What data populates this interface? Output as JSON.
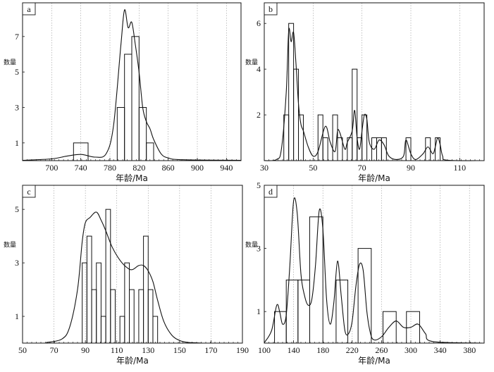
{
  "chart_data": [
    {
      "panel": "a",
      "type": "bar",
      "xlabel": "年龄/Ma",
      "ylabel": "数量",
      "xlim": [
        660,
        960
      ],
      "ylim": [
        0,
        8.9
      ],
      "xticks": [
        700,
        740,
        780,
        820,
        860,
        900,
        940
      ],
      "yticks": [
        1,
        3,
        5,
        7
      ],
      "grid": true,
      "bins": [
        {
          "x0": 730,
          "x1": 750,
          "count": 1
        },
        {
          "x0": 790,
          "x1": 800,
          "count": 3
        },
        {
          "x0": 800,
          "x1": 810,
          "count": 6
        },
        {
          "x0": 810,
          "x1": 820,
          "count": 7
        },
        {
          "x0": 820,
          "x1": 830,
          "count": 3
        },
        {
          "x0": 830,
          "x1": 840,
          "count": 1
        }
      ],
      "density_curve": {
        "x": [
          660,
          700,
          720,
          740,
          760,
          775,
          785,
          795,
          800,
          805,
          810,
          815,
          820,
          825,
          830,
          835,
          840,
          850,
          860,
          880,
          960
        ],
        "y": [
          0.02,
          0.1,
          0.25,
          0.35,
          0.2,
          0.4,
          2.0,
          6.5,
          8.5,
          7.5,
          7.8,
          6.5,
          5.0,
          3.0,
          2.2,
          1.8,
          1.2,
          0.4,
          0.15,
          0.05,
          0.02
        ]
      }
    },
    {
      "panel": "b",
      "type": "bar",
      "xlabel": "年龄/Ma",
      "ylabel": "数量",
      "xlim": [
        30,
        120
      ],
      "ylim": [
        0,
        6.9
      ],
      "xticks": [
        30,
        50,
        70,
        90,
        110
      ],
      "yticks": [
        2,
        4,
        6
      ],
      "grid": true,
      "bins": [
        {
          "x0": 38,
          "x1": 40,
          "count": 2
        },
        {
          "x0": 40,
          "x1": 42,
          "count": 6
        },
        {
          "x0": 42,
          "x1": 44,
          "count": 4
        },
        {
          "x0": 44,
          "x1": 46,
          "count": 2
        },
        {
          "x0": 52,
          "x1": 54,
          "count": 2
        },
        {
          "x0": 54,
          "x1": 56,
          "count": 1
        },
        {
          "x0": 58,
          "x1": 60,
          "count": 2
        },
        {
          "x0": 60,
          "x1": 62,
          "count": 1
        },
        {
          "x0": 64,
          "x1": 66,
          "count": 1
        },
        {
          "x0": 66,
          "x1": 68,
          "count": 4
        },
        {
          "x0": 68,
          "x1": 70,
          "count": 1
        },
        {
          "x0": 70,
          "x1": 72,
          "count": 2
        },
        {
          "x0": 74,
          "x1": 76,
          "count": 1
        },
        {
          "x0": 76,
          "x1": 78,
          "count": 1
        },
        {
          "x0": 78,
          "x1": 80,
          "count": 1
        },
        {
          "x0": 88,
          "x1": 90,
          "count": 1
        },
        {
          "x0": 96,
          "x1": 98,
          "count": 1
        },
        {
          "x0": 100,
          "x1": 102,
          "count": 1
        }
      ],
      "density_curve": {
        "x": [
          30,
          35,
          37,
          39,
          40,
          41,
          42,
          43,
          44,
          45,
          46,
          48,
          50,
          52,
          55,
          57,
          59,
          60,
          61,
          63,
          64,
          66,
          67,
          68,
          69,
          70,
          71,
          72,
          73,
          75,
          77,
          79,
          81,
          84,
          87,
          88,
          90,
          92,
          95,
          97,
          99,
          100,
          101,
          102,
          103,
          105,
          120
        ],
        "y": [
          0,
          0.05,
          0.5,
          3.0,
          5.7,
          5.2,
          5.6,
          4.2,
          2.5,
          1.6,
          1.3,
          0.6,
          0.2,
          0.4,
          1.5,
          0.8,
          0.4,
          1.3,
          1.2,
          0.5,
          0.8,
          1.3,
          2.2,
          1.0,
          0.5,
          1.3,
          2.0,
          1.8,
          0.8,
          0.5,
          0.9,
          0.7,
          0.2,
          0.05,
          0.2,
          0.9,
          0.3,
          0.05,
          0.3,
          0.6,
          0.3,
          0.6,
          1.0,
          0.7,
          0.2,
          0.02,
          0
        ]
      }
    },
    {
      "panel": "c",
      "type": "bar",
      "xlabel": "年龄/Ma",
      "ylabel": "数量",
      "xlim": [
        50,
        190
      ],
      "ylim": [
        0,
        5.9
      ],
      "xticks": [
        50,
        70,
        90,
        110,
        130,
        150,
        170,
        190
      ],
      "yticks": [
        1,
        3,
        5
      ],
      "grid": true,
      "bins": [
        {
          "x0": 88,
          "x1": 91,
          "count": 3
        },
        {
          "x0": 91,
          "x1": 94,
          "count": 4
        },
        {
          "x0": 94,
          "x1": 97,
          "count": 2
        },
        {
          "x0": 97,
          "x1": 100,
          "count": 3
        },
        {
          "x0": 100,
          "x1": 103,
          "count": 1
        },
        {
          "x0": 103,
          "x1": 106,
          "count": 5
        },
        {
          "x0": 106,
          "x1": 109,
          "count": 2
        },
        {
          "x0": 112,
          "x1": 115,
          "count": 1
        },
        {
          "x0": 115,
          "x1": 118,
          "count": 3
        },
        {
          "x0": 118,
          "x1": 121,
          "count": 2
        },
        {
          "x0": 124,
          "x1": 127,
          "count": 2
        },
        {
          "x0": 127,
          "x1": 130,
          "count": 4
        },
        {
          "x0": 130,
          "x1": 133,
          "count": 2
        },
        {
          "x0": 133,
          "x1": 136,
          "count": 1
        }
      ],
      "density_curve": {
        "x": [
          65,
          75,
          80,
          85,
          88,
          90,
          93,
          97,
          100,
          103,
          107,
          112,
          117,
          120,
          124,
          127,
          130,
          133,
          136,
          140,
          145,
          150,
          155,
          165
        ],
        "y": [
          0.02,
          0.15,
          0.6,
          2.0,
          3.8,
          4.5,
          4.7,
          4.9,
          4.6,
          4.2,
          3.6,
          3.1,
          2.8,
          2.75,
          2.9,
          2.9,
          2.7,
          2.3,
          1.6,
          0.8,
          0.3,
          0.1,
          0.03,
          0
        ]
      }
    },
    {
      "panel": "d",
      "type": "bar",
      "xlabel": "年龄/Ma",
      "ylabel": "数量",
      "xlim": [
        100,
        400
      ],
      "ylim": [
        0,
        5.0
      ],
      "xticks": [
        100,
        140,
        180,
        220,
        260,
        300,
        340,
        380
      ],
      "yticks": [
        1,
        3,
        5
      ],
      "grid": true,
      "bins": [
        {
          "x0": 114,
          "x1": 130,
          "count": 1
        },
        {
          "x0": 130,
          "x1": 146,
          "count": 2
        },
        {
          "x0": 146,
          "x1": 162,
          "count": 2
        },
        {
          "x0": 162,
          "x1": 180,
          "count": 4
        },
        {
          "x0": 198,
          "x1": 214,
          "count": 2
        },
        {
          "x0": 228,
          "x1": 246,
          "count": 3
        },
        {
          "x0": 262,
          "x1": 280,
          "count": 1
        },
        {
          "x0": 294,
          "x1": 312,
          "count": 1
        }
      ],
      "density_curve": {
        "x": [
          100,
          110,
          117,
          121,
          125,
          130,
          135,
          140,
          145,
          150,
          155,
          160,
          165,
          170,
          175,
          180,
          185,
          190,
          195,
          200,
          205,
          210,
          215,
          220,
          225,
          230,
          235,
          240,
          245,
          250,
          260,
          270,
          280,
          290,
          300,
          310,
          320,
          330,
          400
        ],
        "y": [
          0.01,
          0.4,
          1.2,
          1.0,
          0.6,
          0.9,
          2.5,
          4.5,
          4.1,
          2.2,
          1.5,
          1.2,
          1.4,
          2.5,
          4.2,
          3.6,
          1.4,
          0.6,
          1.3,
          2.6,
          1.5,
          0.4,
          0.3,
          0.7,
          1.8,
          2.5,
          2.3,
          1.0,
          0.3,
          0.1,
          0.2,
          0.5,
          0.7,
          0.5,
          0.5,
          0.6,
          0.3,
          0.05,
          0
        ]
      }
    }
  ]
}
